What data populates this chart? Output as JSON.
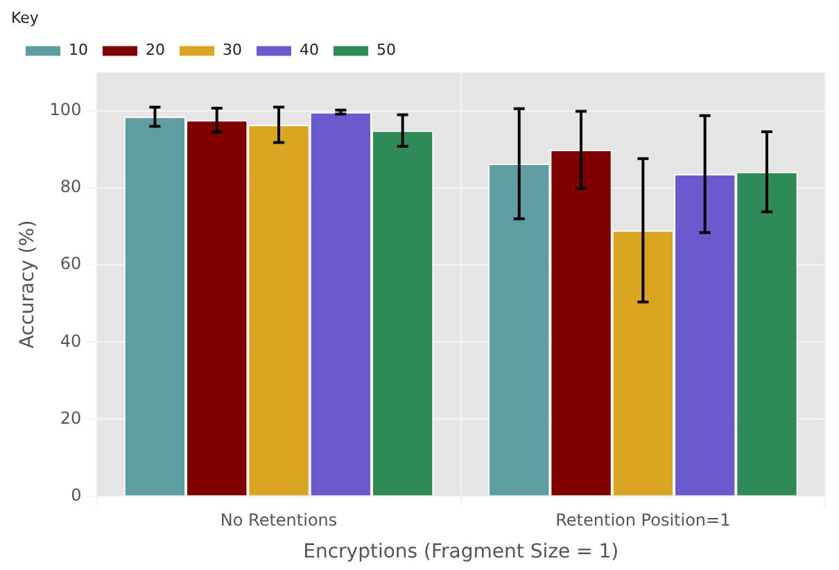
{
  "chart_data": {
    "type": "bar",
    "xlabel": "Encryptions (Fragment Size = 1)",
    "ylabel": "Accuracy (%)",
    "legend_title": "Key",
    "legend": "top left",
    "grid": true,
    "categories": [
      "No Retentions",
      "Retention Position=1"
    ],
    "ylim": [
      0,
      110
    ],
    "yticks": [
      0,
      20,
      40,
      60,
      80,
      100
    ],
    "series": [
      {
        "name": "10",
        "color": "#5f9ea0",
        "values": [
          98.5,
          86.3
        ],
        "errors": [
          2.5,
          14.3
        ]
      },
      {
        "name": "20",
        "color": "#800000",
        "values": [
          97.6,
          89.9
        ],
        "errors": [
          3.1,
          10
        ]
      },
      {
        "name": "30",
        "color": "#daa520",
        "values": [
          96.4,
          69
        ],
        "errors": [
          4.6,
          18.6
        ]
      },
      {
        "name": "40",
        "color": "#6a5acd",
        "values": [
          99.7,
          83.6
        ],
        "errors": [
          0.5,
          15.2
        ]
      },
      {
        "name": "50",
        "color": "#2e8b57",
        "values": [
          94.9,
          84.2
        ],
        "errors": [
          4.1,
          10.4
        ]
      }
    ]
  }
}
